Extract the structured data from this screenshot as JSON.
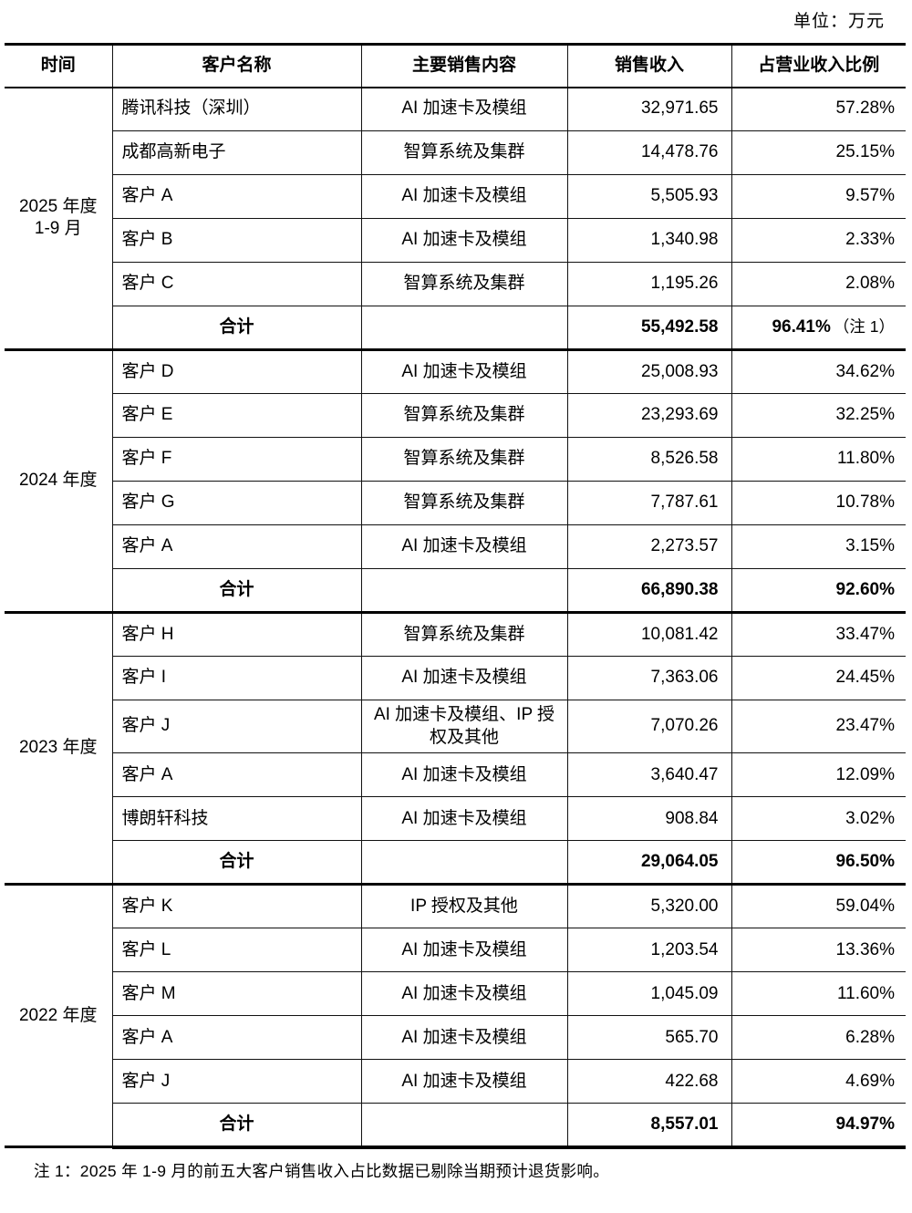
{
  "unit_label": "单位：万元",
  "columns": [
    "时间",
    "客户名称",
    "主要销售内容",
    "销售收入",
    "占营业收入比例"
  ],
  "groups": [
    {
      "period_lines": [
        "2025 年度",
        "1-9 月"
      ],
      "rows": [
        {
          "customer": "腾讯科技（深圳）",
          "content": "AI 加速卡及模组",
          "revenue": "32,971.65",
          "ratio": "57.28%"
        },
        {
          "customer": "成都高新电子",
          "content": "智算系统及集群",
          "revenue": "14,478.76",
          "ratio": "25.15%"
        },
        {
          "customer": "客户 A",
          "content": "AI 加速卡及模组",
          "revenue": "5,505.93",
          "ratio": "9.57%"
        },
        {
          "customer": "客户 B",
          "content": "AI 加速卡及模组",
          "revenue": "1,340.98",
          "ratio": "2.33%"
        },
        {
          "customer": "客户 C",
          "content": "智算系统及集群",
          "revenue": "1,195.26",
          "ratio": "2.08%"
        }
      ],
      "total": {
        "label": "合计",
        "revenue": "55,492.58",
        "ratio": "96.41%",
        "ratio_note": "（注 1）"
      }
    },
    {
      "period_lines": [
        "2024 年度"
      ],
      "rows": [
        {
          "customer": "客户 D",
          "content": "AI 加速卡及模组",
          "revenue": "25,008.93",
          "ratio": "34.62%"
        },
        {
          "customer": "客户 E",
          "content": "智算系统及集群",
          "revenue": "23,293.69",
          "ratio": "32.25%"
        },
        {
          "customer": "客户 F",
          "content": "智算系统及集群",
          "revenue": "8,526.58",
          "ratio": "11.80%"
        },
        {
          "customer": "客户 G",
          "content": "智算系统及集群",
          "revenue": "7,787.61",
          "ratio": "10.78%"
        },
        {
          "customer": "客户 A",
          "content": "AI 加速卡及模组",
          "revenue": "2,273.57",
          "ratio": "3.15%"
        }
      ],
      "total": {
        "label": "合计",
        "revenue": "66,890.38",
        "ratio": "92.60%"
      }
    },
    {
      "period_lines": [
        "2023 年度"
      ],
      "rows": [
        {
          "customer": "客户 H",
          "content": "智算系统及集群",
          "revenue": "10,081.42",
          "ratio": "33.47%"
        },
        {
          "customer": "客户 I",
          "content": "AI 加速卡及模组",
          "revenue": "7,363.06",
          "ratio": "24.45%"
        },
        {
          "customer": "客户 J",
          "content": "AI 加速卡及模组、IP 授权及其他",
          "revenue": "7,070.26",
          "ratio": "23.47%"
        },
        {
          "customer": "客户 A",
          "content": "AI 加速卡及模组",
          "revenue": "3,640.47",
          "ratio": "12.09%"
        },
        {
          "customer": "博朗轩科技",
          "content": "AI 加速卡及模组",
          "revenue": "908.84",
          "ratio": "3.02%"
        }
      ],
      "total": {
        "label": "合计",
        "revenue": "29,064.05",
        "ratio": "96.50%"
      }
    },
    {
      "period_lines": [
        "2022 年度"
      ],
      "rows": [
        {
          "customer": "客户 K",
          "content": "IP 授权及其他",
          "revenue": "5,320.00",
          "ratio": "59.04%"
        },
        {
          "customer": "客户 L",
          "content": "AI 加速卡及模组",
          "revenue": "1,203.54",
          "ratio": "13.36%"
        },
        {
          "customer": "客户 M",
          "content": "AI 加速卡及模组",
          "revenue": "1,045.09",
          "ratio": "11.60%"
        },
        {
          "customer": "客户 A",
          "content": "AI 加速卡及模组",
          "revenue": "565.70",
          "ratio": "6.28%"
        },
        {
          "customer": "客户 J",
          "content": "AI 加速卡及模组",
          "revenue": "422.68",
          "ratio": "4.69%"
        }
      ],
      "total": {
        "label": "合计",
        "revenue": "8,557.01",
        "ratio": "94.97%"
      }
    }
  ],
  "footnote": "注 1：2025 年 1-9 月的前五大客户销售收入占比数据已剔除当期预计退货影响。"
}
